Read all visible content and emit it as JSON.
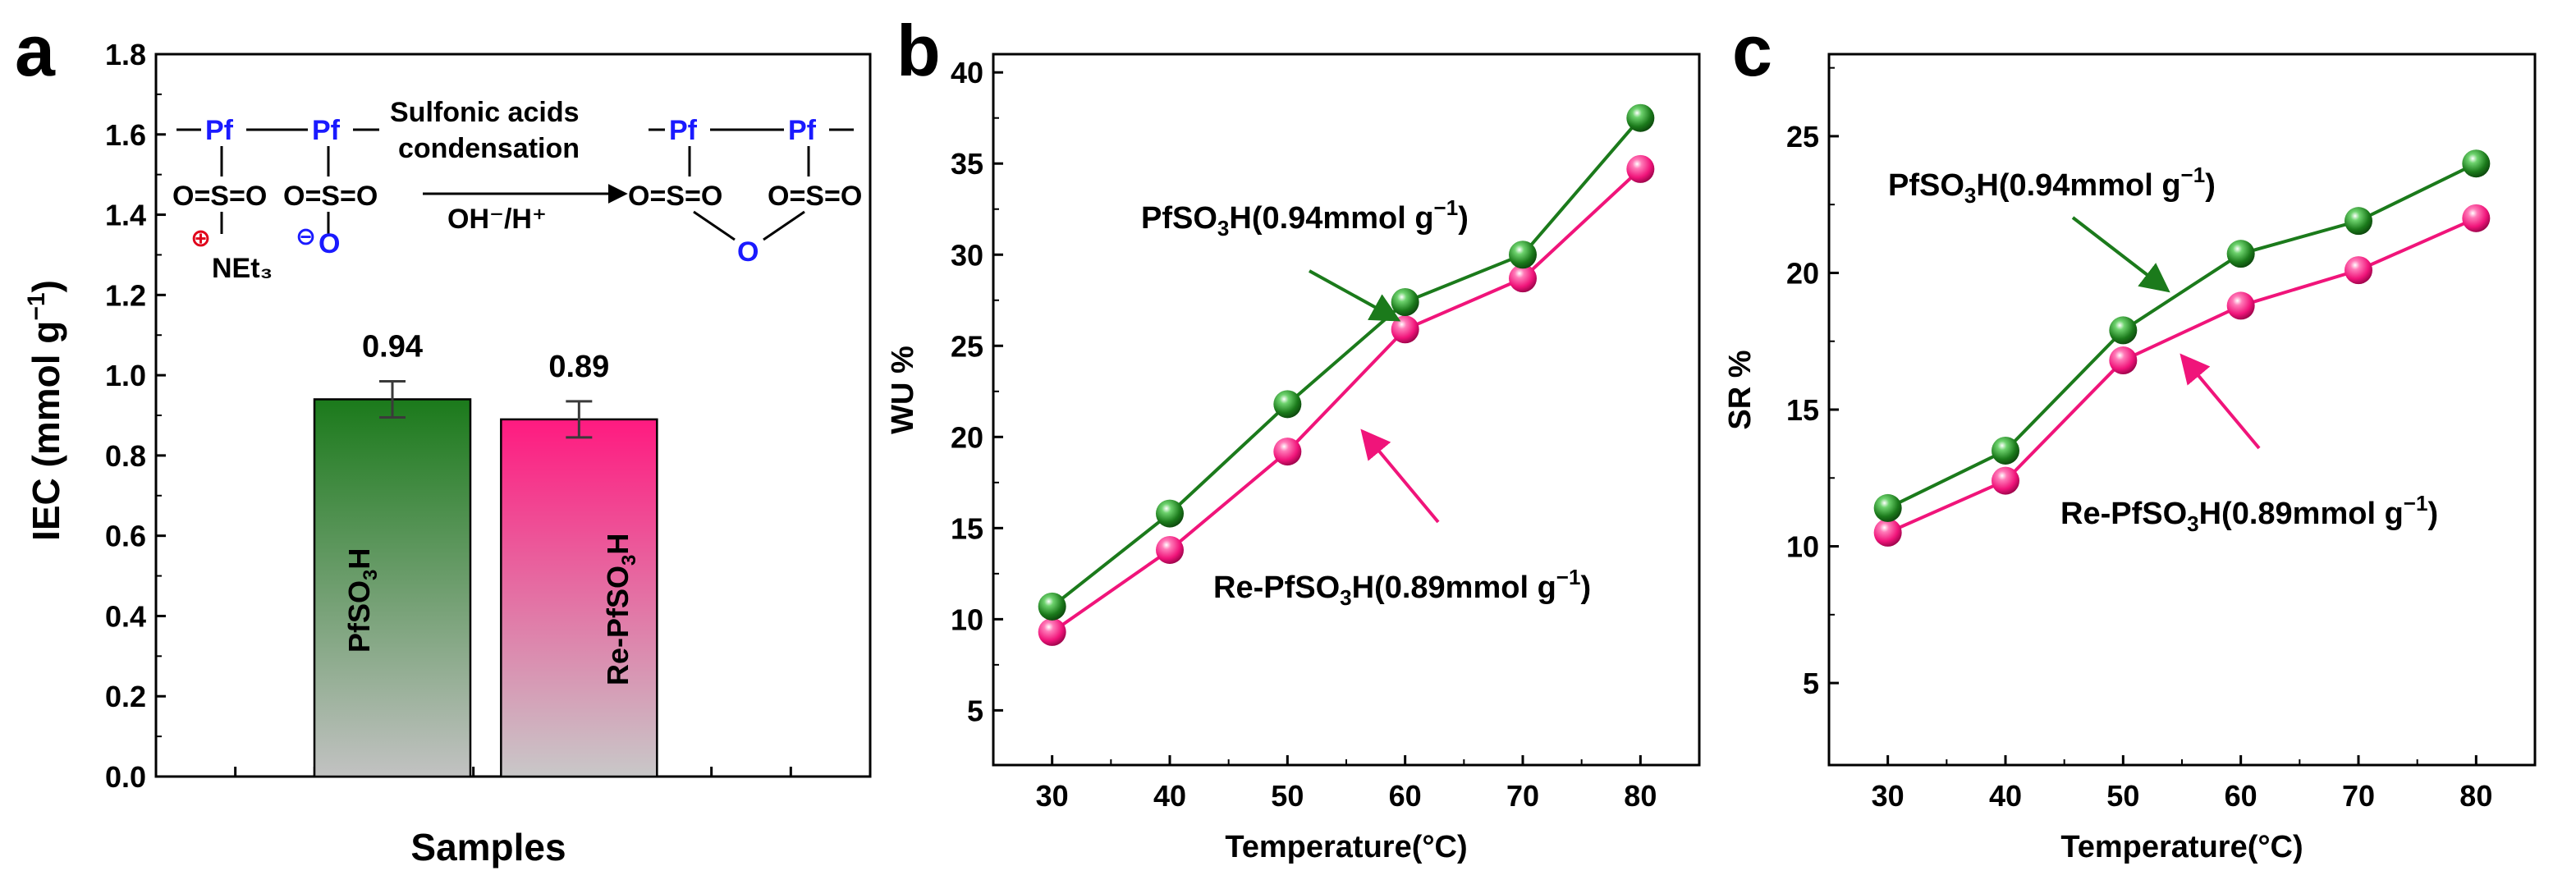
{
  "colors": {
    "green": "#1b7a1b",
    "pink": "#f0147a",
    "blue": "#1a1aff",
    "red": "#e0001a",
    "axis": "#000000",
    "grey": "#b8b8b8"
  },
  "chart_data": [
    {
      "panel": "a",
      "type": "bar",
      "title": "",
      "xlabel": "Samples",
      "ylabel": "IEC (mmol g⁻¹)",
      "ylim": [
        0.0,
        1.8
      ],
      "yticks": [
        "0.0",
        "0.2",
        "0.4",
        "0.6",
        "0.8",
        "1.0",
        "1.2",
        "1.4",
        "1.6",
        "1.8"
      ],
      "categories": [
        "PfSO₃H",
        "Re-PfSO₃H"
      ],
      "values": [
        0.94,
        0.89
      ],
      "errors": [
        0.045,
        0.045
      ],
      "data_labels": [
        "0.94",
        "0.89"
      ],
      "scheme": {
        "pf1": "Pf",
        "pf2": "Pf",
        "pf3": "Pf",
        "pf4": "Pf",
        "so_left1": "O=S=O",
        "so_left2": "O=S=O",
        "so_right1": "O=S=O",
        "so_right2": "O=S=O",
        "plus": "⊕",
        "minus": "⊖",
        "net3": "NEt₃",
        "o_neg": "O",
        "o_bridge": "O",
        "arrow_top1": "Sulfonic acids",
        "arrow_top2": "condensation",
        "arrow_bottom": "OH⁻/H⁺"
      }
    },
    {
      "panel": "b",
      "type": "line",
      "xlabel": "Temperature(°C)",
      "ylabel": "WU %",
      "x": [
        30,
        40,
        50,
        60,
        70,
        80
      ],
      "xlim": [
        25,
        85
      ],
      "ylim": [
        2,
        41
      ],
      "xticks": [
        "30",
        "40",
        "50",
        "60",
        "70",
        "80"
      ],
      "yticks": [
        "5",
        "10",
        "15",
        "20",
        "25",
        "30",
        "35",
        "40"
      ],
      "series": [
        {
          "name": "PfSO₃H(0.94mmol g⁻¹)",
          "values": [
            10.7,
            15.8,
            21.8,
            27.4,
            30.0,
            37.5
          ]
        },
        {
          "name": "Re-PfSO₃H(0.89mmol g⁻¹)",
          "values": [
            9.3,
            13.8,
            19.2,
            25.9,
            28.7,
            34.7
          ]
        }
      ]
    },
    {
      "panel": "c",
      "type": "line",
      "xlabel": "Temperature(°C)",
      "ylabel": "SR %",
      "x": [
        30,
        40,
        50,
        60,
        70,
        80
      ],
      "xlim": [
        25,
        85
      ],
      "ylim": [
        2,
        28
      ],
      "xticks": [
        "30",
        "40",
        "50",
        "60",
        "70",
        "80"
      ],
      "yticks": [
        "5",
        "10",
        "15",
        "20",
        "25"
      ],
      "series": [
        {
          "name": "PfSO₃H(0.94mmol g⁻¹)",
          "values": [
            11.4,
            13.5,
            17.9,
            20.7,
            21.9,
            24.0
          ]
        },
        {
          "name": "Re-PfSO₃H(0.89mmol g⁻¹)",
          "values": [
            10.5,
            12.4,
            16.8,
            18.8,
            20.1,
            22.0
          ]
        }
      ]
    }
  ]
}
